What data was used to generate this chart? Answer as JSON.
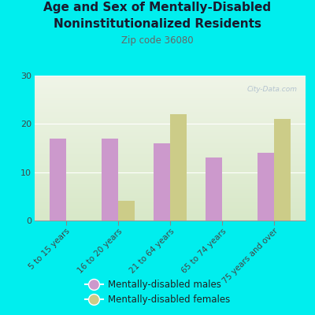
{
  "title_line1": "Age and Sex of Mentally-Disabled",
  "title_line2": "Noninstitutionalized Residents",
  "subtitle": "Zip code 36080",
  "categories": [
    "5 to 15 years",
    "16 to 20 years",
    "21 to 64 years",
    "65 to 74 years",
    "75 years and over"
  ],
  "males": [
    17,
    17,
    16,
    13,
    14
  ],
  "females": [
    0,
    4,
    22,
    0,
    21
  ],
  "male_color": "#cc99cc",
  "female_color": "#cccc88",
  "bg_color": "#00eeee",
  "ylim": [
    0,
    30
  ],
  "yticks": [
    0,
    10,
    20,
    30
  ],
  "bar_width": 0.32,
  "legend_male": "Mentally-disabled males",
  "legend_female": "Mentally-disabled females",
  "watermark": "City-Data.com",
  "title_color": "#1a1a2e",
  "subtitle_color": "#666666"
}
